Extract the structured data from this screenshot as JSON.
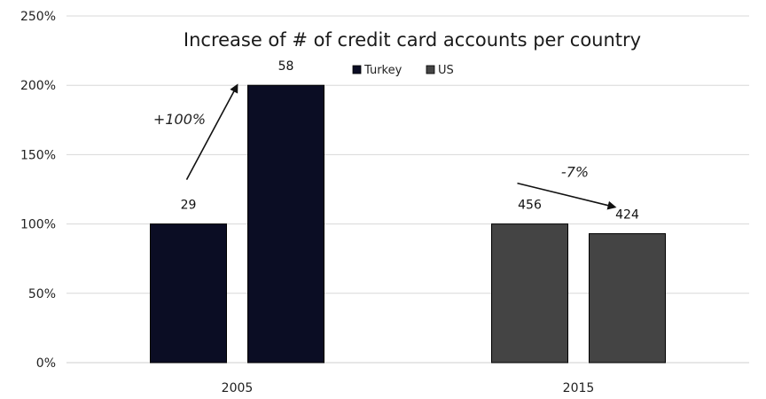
{
  "chart_data": {
    "type": "bar",
    "title": "Increase of # of credit card accounts per country",
    "categories": [
      "2005",
      "2015"
    ],
    "ylim": [
      0,
      250
    ],
    "ytick_values": [
      0,
      50,
      100,
      150,
      200,
      250
    ],
    "ytick_labels": [
      "0%",
      "50%",
      "100%",
      "150%",
      "200%",
      "250%"
    ],
    "grid": true,
    "legend_position": "top-center",
    "legend": [
      {
        "name": "Turkey",
        "color": "#0b0d24"
      },
      {
        "name": "US",
        "color": "#444444"
      }
    ],
    "bars": [
      {
        "category": "2005",
        "value": 100,
        "label": "29",
        "color": "#0b0d24"
      },
      {
        "category": "2005",
        "value": 200,
        "label": "58",
        "color": "#0b0d24"
      },
      {
        "category": "2015",
        "value": 100,
        "label": "456",
        "color": "#444444"
      },
      {
        "category": "2015",
        "value": 93,
        "label": "424",
        "color": "#444444"
      }
    ],
    "annotations": [
      {
        "text": "+100%",
        "category": "2005",
        "from_value": 100,
        "to_value": 200
      },
      {
        "text": "-7%",
        "category": "2015",
        "from_value": 100,
        "to_value": 93
      }
    ]
  }
}
